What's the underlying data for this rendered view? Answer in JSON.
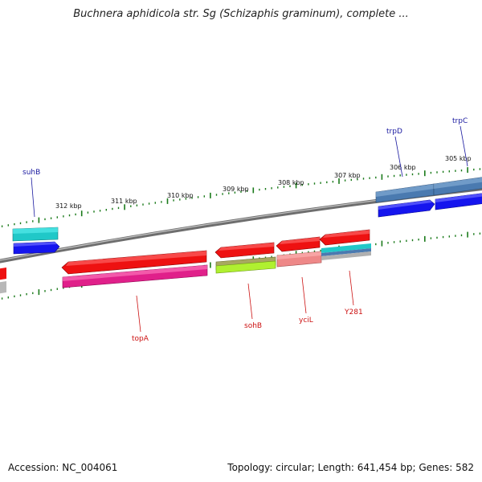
{
  "title": "Buchnera aphidicola str. Sg (Schizaphis graminum), complete ...",
  "footer": {
    "accession": "Accession: NC_004061",
    "summary": "Topology: circular; Length: 641,454 bp; Genes: 582"
  },
  "ruler": {
    "labels": [
      "312 kbp",
      "311 kbp",
      "310 kbp",
      "309 kbp",
      "308 kbp",
      "307 kbp",
      "306 kbp",
      "305 kbp"
    ]
  },
  "gene_labels": {
    "suhB": "suhB",
    "trpD": "trpD",
    "trpC": "trpC",
    "topA": "topA",
    "sohB": "sohB",
    "yciL": "yciL",
    "Y281": "Y281"
  },
  "colors": {
    "backbone": "#8a8a8a",
    "tick": "#1a7a1a",
    "forward_label": "#1a1aa0",
    "reverse_label": "#cc1111",
    "cds_red": "#ee1111",
    "cds_blue": "#1515ee",
    "cds_steel": "#4a7ab0",
    "cds_teal": "#22c8c8",
    "cds_magenta": "#e0208a",
    "cds_olive": "#a8a860",
    "cds_lime": "#b0f030",
    "cds_salmon": "#ee8888"
  }
}
